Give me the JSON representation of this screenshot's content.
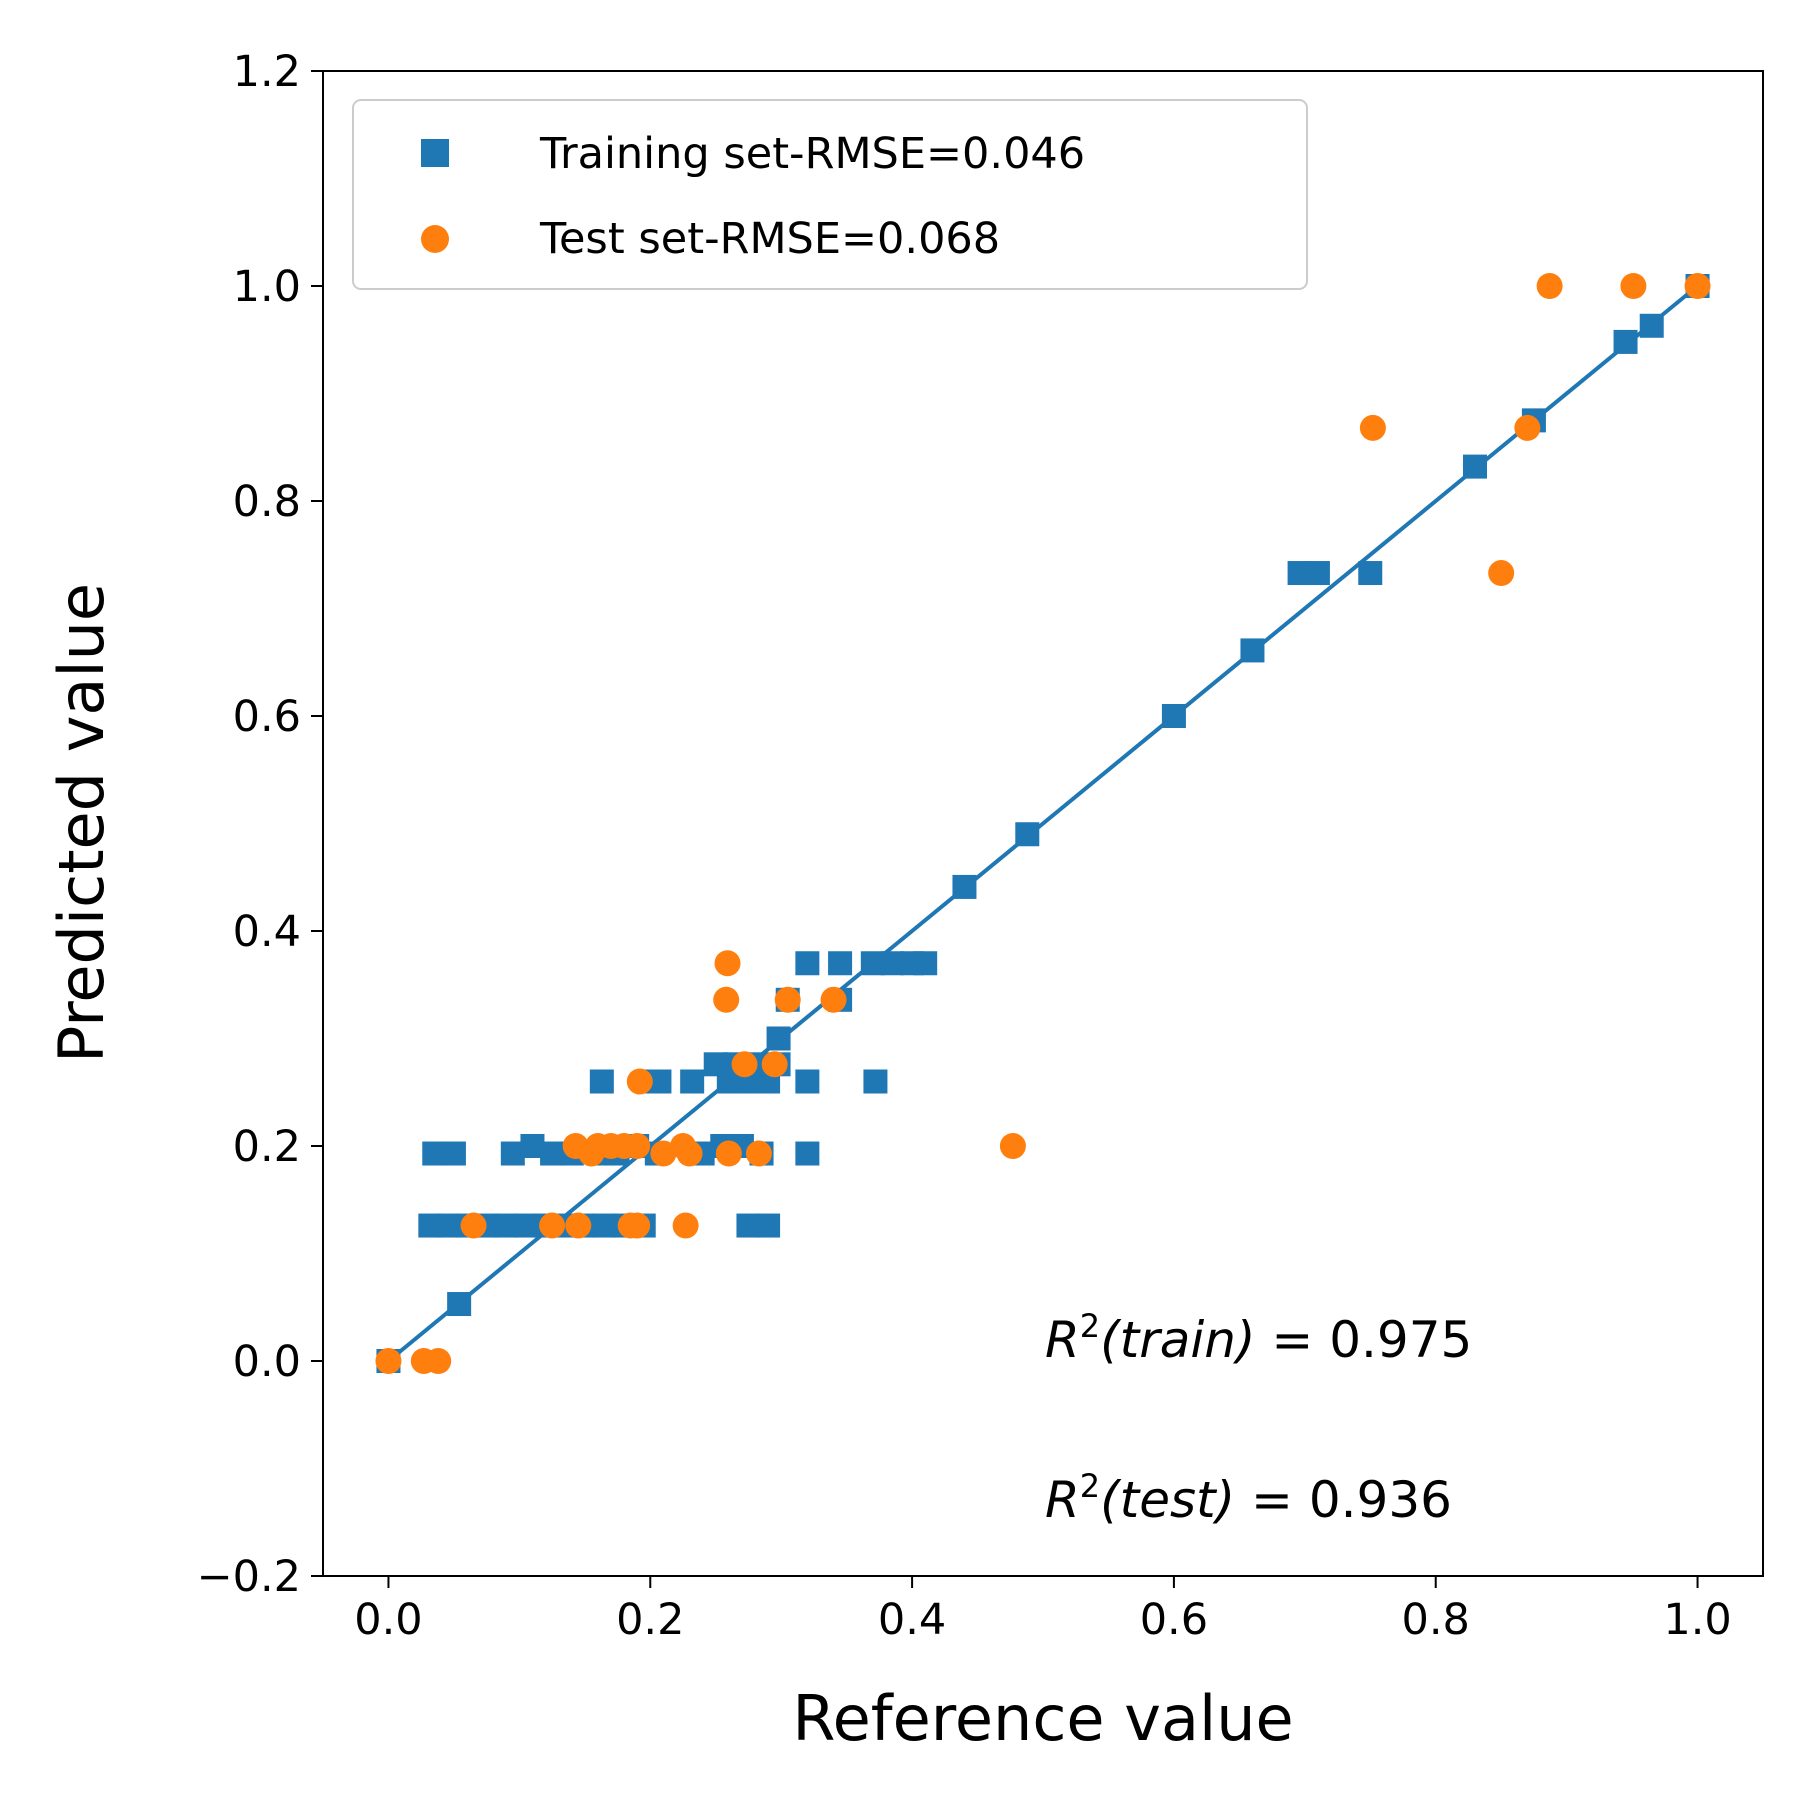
{
  "chart_data": {
    "type": "scatter",
    "xlabel": "Reference value",
    "ylabel": "Predicted value",
    "xlim": [
      -0.05,
      1.05
    ],
    "ylim": [
      -0.2,
      1.2
    ],
    "xticks": [
      "0.0",
      "0.2",
      "0.4",
      "0.6",
      "0.8",
      "1.0"
    ],
    "xtick_values": [
      0.0,
      0.2,
      0.4,
      0.6,
      0.8,
      1.0
    ],
    "yticks": [
      "−0.2",
      "0.0",
      "0.2",
      "0.4",
      "0.6",
      "0.8",
      "1.0",
      "1.2"
    ],
    "ytick_values": [
      -0.2,
      0.0,
      0.2,
      0.4,
      0.6,
      0.8,
      1.0,
      1.2
    ],
    "grid": false,
    "legend_position": "top-left",
    "series": [
      {
        "name": "Training set-RMSE=0.046",
        "marker": "square",
        "color": "#1f77b4",
        "points": [
          [
            0.0,
            0.0
          ],
          [
            0.054,
            0.053
          ],
          [
            0.032,
            0.126
          ],
          [
            0.045,
            0.126
          ],
          [
            0.06,
            0.126
          ],
          [
            0.075,
            0.126
          ],
          [
            0.09,
            0.126
          ],
          [
            0.105,
            0.126
          ],
          [
            0.12,
            0.126
          ],
          [
            0.135,
            0.126
          ],
          [
            0.15,
            0.126
          ],
          [
            0.165,
            0.126
          ],
          [
            0.18,
            0.126
          ],
          [
            0.195,
            0.126
          ],
          [
            0.275,
            0.126
          ],
          [
            0.29,
            0.126
          ],
          [
            0.035,
            0.193
          ],
          [
            0.05,
            0.193
          ],
          [
            0.095,
            0.193
          ],
          [
            0.11,
            0.2
          ],
          [
            0.125,
            0.193
          ],
          [
            0.14,
            0.193
          ],
          [
            0.16,
            0.193
          ],
          [
            0.175,
            0.193
          ],
          [
            0.19,
            0.2
          ],
          [
            0.205,
            0.193
          ],
          [
            0.24,
            0.193
          ],
          [
            0.255,
            0.2
          ],
          [
            0.27,
            0.2
          ],
          [
            0.285,
            0.193
          ],
          [
            0.32,
            0.193
          ],
          [
            0.163,
            0.26
          ],
          [
            0.2,
            0.26
          ],
          [
            0.207,
            0.26
          ],
          [
            0.232,
            0.26
          ],
          [
            0.26,
            0.26
          ],
          [
            0.275,
            0.26
          ],
          [
            0.29,
            0.26
          ],
          [
            0.32,
            0.26
          ],
          [
            0.372,
            0.26
          ],
          [
            0.25,
            0.276
          ],
          [
            0.265,
            0.276
          ],
          [
            0.28,
            0.276
          ],
          [
            0.298,
            0.276
          ],
          [
            0.298,
            0.3
          ],
          [
            0.305,
            0.336
          ],
          [
            0.345,
            0.336
          ],
          [
            0.32,
            0.37
          ],
          [
            0.345,
            0.37
          ],
          [
            0.37,
            0.37
          ],
          [
            0.385,
            0.37
          ],
          [
            0.4,
            0.37
          ],
          [
            0.41,
            0.37
          ],
          [
            0.44,
            0.441
          ],
          [
            0.488,
            0.49
          ],
          [
            0.6,
            0.6
          ],
          [
            0.66,
            0.661
          ],
          [
            0.696,
            0.733
          ],
          [
            0.71,
            0.733
          ],
          [
            0.75,
            0.733
          ],
          [
            0.83,
            0.832
          ],
          [
            0.875,
            0.875
          ],
          [
            0.945,
            0.948
          ],
          [
            0.965,
            0.963
          ],
          [
            1.0,
            1.0
          ]
        ]
      },
      {
        "name": "Test set-RMSE=0.068",
        "marker": "circle",
        "color": "#ff7f0e",
        "points": [
          [
            0.0,
            0.0
          ],
          [
            0.027,
            0.0
          ],
          [
            0.038,
            0.0
          ],
          [
            0.065,
            0.126
          ],
          [
            0.125,
            0.126
          ],
          [
            0.145,
            0.126
          ],
          [
            0.185,
            0.126
          ],
          [
            0.19,
            0.126
          ],
          [
            0.227,
            0.126
          ],
          [
            0.143,
            0.2
          ],
          [
            0.155,
            0.193
          ],
          [
            0.16,
            0.2
          ],
          [
            0.17,
            0.2
          ],
          [
            0.18,
            0.2
          ],
          [
            0.19,
            0.2
          ],
          [
            0.21,
            0.193
          ],
          [
            0.225,
            0.2
          ],
          [
            0.23,
            0.193
          ],
          [
            0.26,
            0.193
          ],
          [
            0.283,
            0.193
          ],
          [
            0.477,
            0.2
          ],
          [
            0.192,
            0.26
          ],
          [
            0.272,
            0.276
          ],
          [
            0.295,
            0.276
          ],
          [
            0.258,
            0.336
          ],
          [
            0.305,
            0.336
          ],
          [
            0.34,
            0.336
          ],
          [
            0.259,
            0.37
          ],
          [
            0.752,
            0.868
          ],
          [
            0.85,
            0.733
          ],
          [
            0.87,
            0.868
          ],
          [
            0.887,
            1.0
          ],
          [
            0.951,
            1.0
          ],
          [
            1.0,
            1.0
          ]
        ]
      }
    ],
    "fit_line": {
      "x": [
        0.0,
        1.0
      ],
      "y": [
        0.0,
        1.0
      ],
      "color": "#1f77b4"
    },
    "annotations": {
      "train": {
        "base": "R",
        "sup": "2",
        "arg": "(train)",
        "eq": " = 0.975"
      },
      "test": {
        "base": "R",
        "sup": "2",
        "arg": "(test)",
        "eq": " = 0.936"
      }
    }
  }
}
